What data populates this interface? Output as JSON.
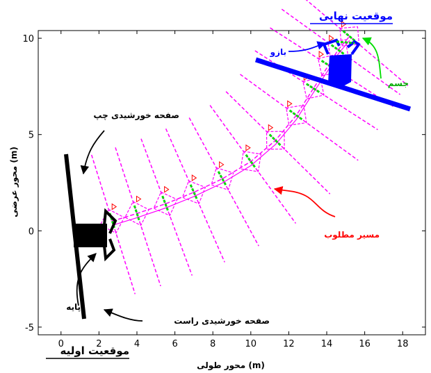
{
  "chart_data": {
    "type": "diagram-plot",
    "xlabel": "محور طولی (m)",
    "ylabel": "محور عرضی (m)",
    "xlim": [
      -1.2,
      19.2
    ],
    "ylim": [
      -5.4,
      10.4
    ],
    "xticks": [
      "0",
      "2",
      "4",
      "6",
      "8",
      "10",
      "12",
      "14",
      "16",
      "18",
      "20"
    ],
    "yticks": [
      "-5",
      "0",
      "5",
      "10"
    ],
    "path": {
      "x": [
        2.7,
        4.0,
        5.5,
        7.0,
        8.5,
        10.0,
        11.3,
        12.4,
        13.3,
        14.1,
        14.6,
        15.2
      ],
      "y": [
        0.5,
        0.9,
        1.4,
        2.0,
        2.7,
        3.6,
        4.7,
        6.0,
        7.4,
        8.6,
        9.4,
        10.1
      ]
    },
    "annotations": {
      "final_position": "موقعیت نهایی",
      "initial_position": "موقعیت اولیه",
      "arm": "بازو",
      "body": "جسم",
      "left_panel": "صفحه خورشیدی چپ",
      "right_panel": "صفحه خورشیدی راست",
      "desired_path": "مسیر مطلوب",
      "base": "پایه"
    },
    "colors": {
      "panel_lines": "#ff00ff",
      "body_link": "#00dd00",
      "final_panel": "#0000ff",
      "desired_path_arrow": "#ff0000",
      "arm_label": "#0000ff",
      "body_label": "#00aa00"
    }
  }
}
